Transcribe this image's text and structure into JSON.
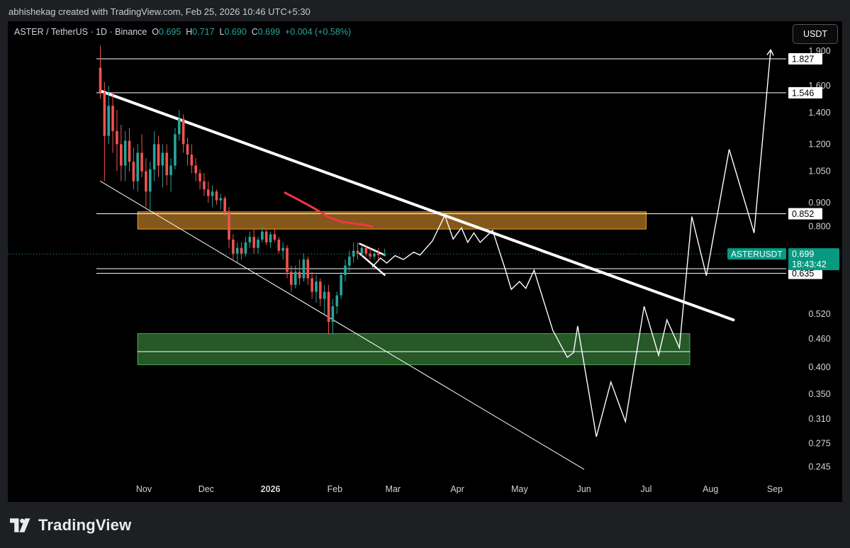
{
  "header": {
    "attribution": "abhishekag created with TradingView.com, Feb 25, 2026 10:46 UTC+5:30"
  },
  "legend": {
    "symbol": "ASTER / TetherUS · 1D · Binance",
    "o_label": "O",
    "o_value": "0.695",
    "h_label": "H",
    "h_value": "0.717",
    "l_label": "L",
    "l_value": "0.690",
    "c_label": "C",
    "c_value": "0.699",
    "change": "+0.004 (+0.58%)"
  },
  "currency_button": "USDT",
  "brand": {
    "name": "TradingView"
  },
  "colors": {
    "background": "#000000",
    "up": "#26a69a",
    "down": "#ef5350",
    "ma": "#f23645",
    "resistance_zone": "#f0a030",
    "support_zone": "#4caf50",
    "lines": "#ffffff"
  },
  "chart_data": {
    "type": "candlestick",
    "symbol": "ASTERUSDT",
    "scale": "log",
    "y_ticks": [
      1.9,
      1.6,
      1.4,
      1.2,
      1.05,
      0.9,
      0.8,
      0.52,
      0.46,
      0.4,
      0.35,
      0.31,
      0.275,
      0.245
    ],
    "y_tick_labels": [
      "1.900",
      "1.600",
      "1.400",
      "1.200",
      "1.050",
      "0.900",
      "0.800",
      "0.520",
      "0.460",
      "0.400",
      "0.350",
      "0.310",
      "0.275",
      "0.245"
    ],
    "x_ticks": [
      {
        "label": "Nov",
        "date": "2025-11-01",
        "bold": false
      },
      {
        "label": "Dec",
        "date": "2025-12-01",
        "bold": false
      },
      {
        "label": "2026",
        "date": "2026-01-01",
        "bold": true
      },
      {
        "label": "Feb",
        "date": "2026-02-01",
        "bold": false
      },
      {
        "label": "Mar",
        "date": "2026-03-01",
        "bold": false
      },
      {
        "label": "Apr",
        "date": "2026-04-01",
        "bold": false
      },
      {
        "label": "May",
        "date": "2026-05-01",
        "bold": false
      },
      {
        "label": "Jun",
        "date": "2026-06-01",
        "bold": false
      },
      {
        "label": "Jul",
        "date": "2026-07-01",
        "bold": false
      },
      {
        "label": "Aug",
        "date": "2026-08-01",
        "bold": false
      },
      {
        "label": "Sep",
        "date": "2026-09-01",
        "bold": false
      }
    ],
    "price_levels": [
      {
        "label": "1.827",
        "value": 1.827
      },
      {
        "label": "1.546",
        "value": 1.546
      },
      {
        "label": "0.852",
        "value": 0.852
      },
      {
        "label": "0.650",
        "value": 0.65
      },
      {
        "label": "0.635",
        "value": 0.635
      }
    ],
    "current_price": {
      "symbol": "ASTERUSDT",
      "price": "0.699",
      "countdown": "18:43:42",
      "value": 0.699
    },
    "zones": [
      {
        "name": "resistance",
        "from": "2025-10-29",
        "to": "2026-07-01",
        "low": 0.79,
        "high": 0.86
      },
      {
        "name": "support",
        "from": "2025-10-29",
        "to": "2026-07-22",
        "low": 0.405,
        "high": 0.472
      }
    ],
    "lines": [
      {
        "name": "descending resistance",
        "from": [
          "2025-10-11",
          1.56
        ],
        "to": [
          "2026-08-12",
          0.505
        ]
      },
      {
        "name": "lower channel",
        "from": [
          "2025-10-11",
          1.0
        ],
        "to": [
          "2026-06-01",
          0.242
        ]
      },
      {
        "name": "support midline",
        "from": [
          "2025-10-29",
          0.432
        ],
        "to": [
          "2026-07-22",
          0.432
        ]
      }
    ],
    "flag": {
      "upper": [
        [
          "2026-02-13",
          0.735
        ],
        [
          "2026-02-25",
          0.695
        ]
      ],
      "lower": [
        [
          "2026-02-13",
          0.7
        ],
        [
          "2026-02-25",
          0.63
        ]
      ]
    },
    "moving_average": [
      [
        "2026-01-08",
        0.945
      ],
      [
        "2026-01-15",
        0.91
      ],
      [
        "2026-01-22",
        0.875
      ],
      [
        "2026-01-29",
        0.837
      ],
      [
        "2026-02-05",
        0.817
      ],
      [
        "2026-02-15",
        0.807
      ],
      [
        "2026-02-19",
        0.8
      ]
    ],
    "projected_path": [
      [
        "2026-02-19",
        0.655
      ],
      [
        "2026-02-23",
        0.685
      ],
      [
        "2026-02-26",
        0.668
      ],
      [
        "2026-03-02",
        0.693
      ],
      [
        "2026-03-06",
        0.68
      ],
      [
        "2026-03-11",
        0.705
      ],
      [
        "2026-03-14",
        0.695
      ],
      [
        "2026-03-20",
        0.745
      ],
      [
        "2026-03-26",
        0.845
      ],
      [
        "2026-03-30",
        0.752
      ],
      [
        "2026-04-03",
        0.795
      ],
      [
        "2026-04-06",
        0.74
      ],
      [
        "2026-04-09",
        0.775
      ],
      [
        "2026-04-12",
        0.74
      ],
      [
        "2026-04-18",
        0.785
      ],
      [
        "2026-04-24",
        0.65
      ],
      [
        "2026-04-27",
        0.587
      ],
      [
        "2026-05-01",
        0.61
      ],
      [
        "2026-05-04",
        0.59
      ],
      [
        "2026-05-08",
        0.645
      ],
      [
        "2026-05-17",
        0.48
      ],
      [
        "2026-05-24",
        0.42
      ],
      [
        "2026-05-27",
        0.43
      ],
      [
        "2026-05-29",
        0.49
      ],
      [
        "2026-06-07",
        0.284
      ],
      [
        "2026-06-14",
        0.372
      ],
      [
        "2026-06-21",
        0.306
      ],
      [
        "2026-06-30",
        0.54
      ],
      [
        "2026-07-07",
        0.424
      ],
      [
        "2026-07-11",
        0.505
      ],
      [
        "2026-07-17",
        0.44
      ],
      [
        "2026-07-23",
        0.84
      ],
      [
        "2026-07-30",
        0.628
      ],
      [
        "2026-08-10",
        1.17
      ],
      [
        "2026-08-22",
        0.775
      ],
      [
        "2026-08-30",
        1.91
      ]
    ],
    "candles": [
      [
        "2025-10-11",
        1.75,
        1.95,
        1.5,
        1.55
      ],
      [
        "2025-10-13",
        1.55,
        1.63,
        1.0,
        1.25
      ],
      [
        "2025-10-15",
        1.25,
        1.6,
        1.2,
        1.45
      ],
      [
        "2025-10-17",
        1.45,
        1.55,
        1.15,
        1.28
      ],
      [
        "2025-10-19",
        1.28,
        1.42,
        1.05,
        1.2
      ],
      [
        "2025-10-21",
        1.2,
        1.32,
        1.0,
        1.08
      ],
      [
        "2025-10-23",
        1.08,
        1.28,
        1.0,
        1.22
      ],
      [
        "2025-10-25",
        1.22,
        1.3,
        1.05,
        1.1
      ],
      [
        "2025-10-27",
        1.1,
        1.18,
        0.96,
        1.0
      ],
      [
        "2025-10-29",
        1.0,
        1.2,
        0.95,
        1.15
      ],
      [
        "2025-10-31",
        1.15,
        1.26,
        1.02,
        1.05
      ],
      [
        "2025-11-02",
        1.05,
        1.12,
        0.88,
        0.95
      ],
      [
        "2025-11-04",
        0.95,
        1.1,
        0.86,
        1.06
      ],
      [
        "2025-11-06",
        1.06,
        1.28,
        1.0,
        1.2
      ],
      [
        "2025-11-08",
        1.2,
        1.25,
        1.02,
        1.08
      ],
      [
        "2025-11-10",
        1.08,
        1.2,
        0.97,
        1.15
      ],
      [
        "2025-11-12",
        1.15,
        1.2,
        0.98,
        1.03
      ],
      [
        "2025-11-14",
        1.03,
        1.12,
        0.95,
        1.08
      ],
      [
        "2025-11-16",
        1.08,
        1.3,
        1.06,
        1.26
      ],
      [
        "2025-11-18",
        1.26,
        1.42,
        1.22,
        1.36
      ],
      [
        "2025-11-20",
        1.36,
        1.39,
        1.15,
        1.2
      ],
      [
        "2025-11-22",
        1.2,
        1.24,
        1.08,
        1.14
      ],
      [
        "2025-11-24",
        1.14,
        1.2,
        1.04,
        1.08
      ],
      [
        "2025-11-26",
        1.08,
        1.12,
        1.0,
        1.04
      ],
      [
        "2025-11-28",
        1.04,
        1.06,
        0.96,
        1.0
      ],
      [
        "2025-11-30",
        1.0,
        1.04,
        0.93,
        0.96
      ],
      [
        "2025-12-02",
        0.96,
        1.0,
        0.9,
        0.93
      ],
      [
        "2025-12-04",
        0.93,
        0.98,
        0.88,
        0.95
      ],
      [
        "2025-12-06",
        0.95,
        0.96,
        0.89,
        0.91
      ],
      [
        "2025-12-08",
        0.91,
        0.94,
        0.87,
        0.92
      ],
      [
        "2025-12-10",
        0.92,
        0.93,
        0.84,
        0.86
      ],
      [
        "2025-12-12",
        0.86,
        0.88,
        0.72,
        0.75
      ],
      [
        "2025-12-14",
        0.75,
        0.77,
        0.68,
        0.7
      ],
      [
        "2025-12-16",
        0.7,
        0.74,
        0.67,
        0.72
      ],
      [
        "2025-12-18",
        0.72,
        0.74,
        0.68,
        0.7
      ],
      [
        "2025-12-20",
        0.7,
        0.76,
        0.69,
        0.74
      ],
      [
        "2025-12-22",
        0.74,
        0.78,
        0.72,
        0.76
      ],
      [
        "2025-12-24",
        0.76,
        0.79,
        0.7,
        0.72
      ],
      [
        "2025-12-26",
        0.72,
        0.76,
        0.7,
        0.75
      ],
      [
        "2025-12-28",
        0.75,
        0.8,
        0.74,
        0.78
      ],
      [
        "2025-12-30",
        0.78,
        0.79,
        0.73,
        0.74
      ],
      [
        "2026-01-01",
        0.74,
        0.78,
        0.72,
        0.77
      ],
      [
        "2026-01-03",
        0.77,
        0.79,
        0.74,
        0.75
      ],
      [
        "2026-01-05",
        0.75,
        0.76,
        0.7,
        0.71
      ],
      [
        "2026-01-07",
        0.71,
        0.74,
        0.68,
        0.72
      ],
      [
        "2026-01-09",
        0.72,
        0.73,
        0.62,
        0.64
      ],
      [
        "2026-01-11",
        0.64,
        0.66,
        0.58,
        0.6
      ],
      [
        "2026-01-13",
        0.6,
        0.66,
        0.59,
        0.64
      ],
      [
        "2026-01-15",
        0.64,
        0.68,
        0.6,
        0.62
      ],
      [
        "2026-01-17",
        0.62,
        0.7,
        0.61,
        0.68
      ],
      [
        "2026-01-19",
        0.68,
        0.69,
        0.6,
        0.62
      ],
      [
        "2026-01-21",
        0.62,
        0.64,
        0.56,
        0.58
      ],
      [
        "2026-01-23",
        0.58,
        0.63,
        0.55,
        0.61
      ],
      [
        "2026-01-25",
        0.61,
        0.62,
        0.54,
        0.56
      ],
      [
        "2026-01-27",
        0.56,
        0.6,
        0.52,
        0.58
      ],
      [
        "2026-01-29",
        0.58,
        0.6,
        0.47,
        0.5
      ],
      [
        "2026-01-31",
        0.5,
        0.56,
        0.47,
        0.54
      ],
      [
        "2026-02-02",
        0.54,
        0.58,
        0.52,
        0.57
      ],
      [
        "2026-02-04",
        0.57,
        0.64,
        0.56,
        0.63
      ],
      [
        "2026-02-06",
        0.63,
        0.68,
        0.61,
        0.66
      ],
      [
        "2026-02-08",
        0.66,
        0.71,
        0.64,
        0.69
      ],
      [
        "2026-02-10",
        0.69,
        0.74,
        0.67,
        0.71
      ],
      [
        "2026-02-12",
        0.71,
        0.74,
        0.68,
        0.7
      ],
      [
        "2026-02-14",
        0.7,
        0.73,
        0.69,
        0.72
      ],
      [
        "2026-02-16",
        0.72,
        0.73,
        0.69,
        0.7
      ],
      [
        "2026-02-18",
        0.7,
        0.72,
        0.68,
        0.69
      ],
      [
        "2026-02-20",
        0.69,
        0.71,
        0.68,
        0.7
      ],
      [
        "2026-02-22",
        0.7,
        0.72,
        0.68,
        0.695
      ],
      [
        "2026-02-25",
        0.695,
        0.717,
        0.69,
        0.699
      ]
    ]
  }
}
